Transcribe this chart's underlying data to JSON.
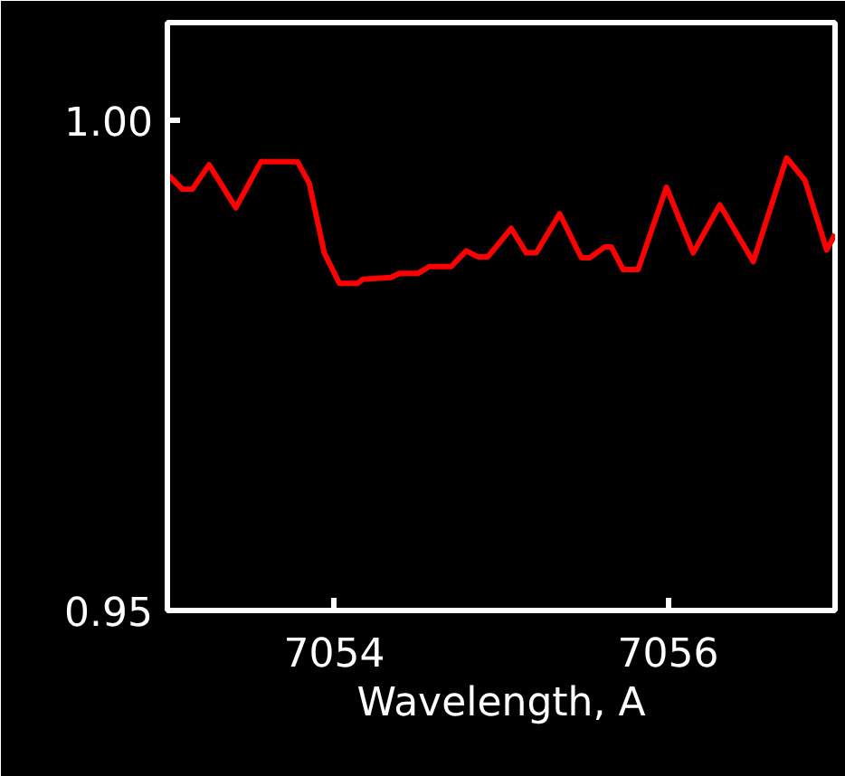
{
  "chart_data": {
    "type": "line",
    "xlabel": "Wavelength, A",
    "x": [
      7053.01,
      7053.09,
      7053.15,
      7053.25,
      7053.41,
      7053.56,
      7053.72,
      7053.78,
      7053.85,
      7053.94,
      7054.03,
      7054.14,
      7054.17,
      7054.34,
      7054.39,
      7054.5,
      7054.57,
      7054.7,
      7054.79,
      7054.86,
      7054.92,
      7055.06,
      7055.15,
      7055.21,
      7055.35,
      7055.48,
      7055.53,
      7055.62,
      7055.66,
      7055.73,
      7055.82,
      7055.99,
      7056.15,
      7056.31,
      7056.51,
      7056.71,
      7056.82,
      7056.95,
      7057.0
    ],
    "series": [
      {
        "color": "#ff0000",
        "values": [
          0.9944,
          0.993,
          0.993,
          0.9955,
          0.9911,
          0.9958,
          0.9958,
          0.9958,
          0.9936,
          0.9865,
          0.9834,
          0.9834,
          0.9838,
          0.984,
          0.9844,
          0.9844,
          0.9851,
          0.9851,
          0.9867,
          0.9861,
          0.9861,
          0.989,
          0.9865,
          0.9865,
          0.9905,
          0.986,
          0.986,
          0.9871,
          0.9871,
          0.9848,
          0.9848,
          0.9932,
          0.9865,
          0.9914,
          0.9856,
          0.9962,
          0.9939,
          0.9868,
          0.9884
        ]
      }
    ],
    "xlim": [
      7053,
      7057
    ],
    "ylim": [
      0.95,
      1.01
    ],
    "xticks": [
      7054,
      7056
    ],
    "yticks": [
      {
        "value": 0.95,
        "label": "0.95"
      },
      {
        "value": 1.0,
        "label": "1.00"
      }
    ],
    "grid": false
  }
}
